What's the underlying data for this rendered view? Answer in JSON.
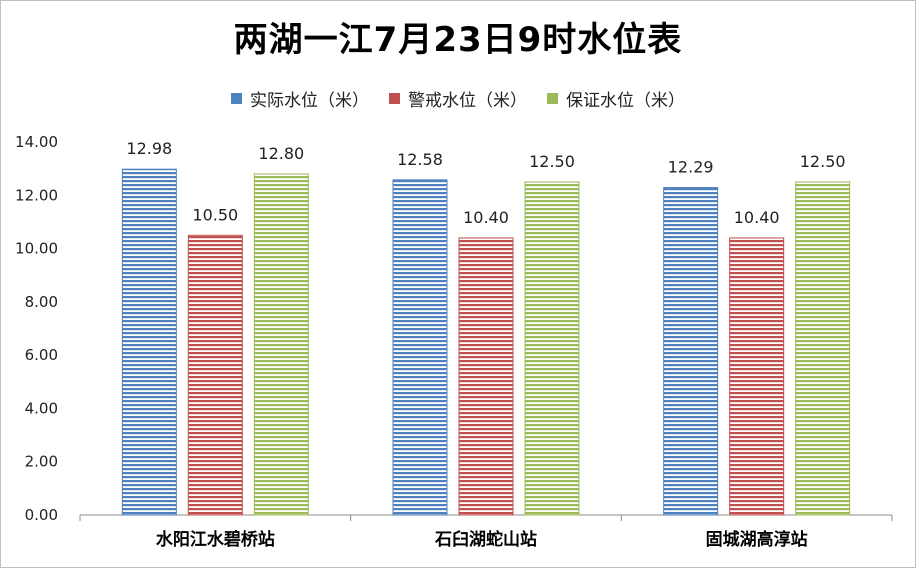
{
  "chart_data": {
    "type": "bar",
    "title": "两湖一江7月23日9时水位表",
    "categories": [
      "水阳江水碧桥站",
      "石臼湖蛇山站",
      "固城湖高淳站"
    ],
    "series": [
      {
        "name": "实际水位（米）",
        "color": "#4f81bd",
        "values": [
          12.98,
          12.58,
          12.29
        ],
        "labels": [
          "12.98",
          "12.58",
          "12.29"
        ]
      },
      {
        "name": "警戒水位（米）",
        "color": "#c0504d",
        "values": [
          10.5,
          10.4,
          10.4
        ],
        "labels": [
          "10.50",
          "10.40",
          "10.40"
        ]
      },
      {
        "name": "保证水位（米）",
        "color": "#9bbb59",
        "values": [
          12.8,
          12.5,
          12.5
        ],
        "labels": [
          "12.80",
          "12.50",
          "12.50"
        ]
      }
    ],
    "ylim": [
      0,
      14
    ],
    "yticks": [
      "0.00",
      "2.00",
      "4.00",
      "6.00",
      "8.00",
      "10.00",
      "12.00",
      "14.00"
    ],
    "grid": false,
    "legend_position": "top"
  }
}
